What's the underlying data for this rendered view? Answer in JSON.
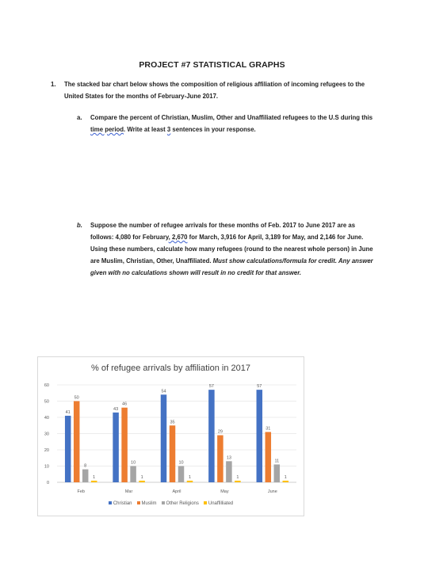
{
  "title": "PROJECT #7 STATISTICAL GRAPHS",
  "question1": {
    "number": "1.",
    "text": "The stacked bar chart below shows the composition of religious affiliation of incoming refugees to the United States for the months of February-June 2017."
  },
  "part_a": {
    "label": "a.",
    "text_1": "Compare the percent of Christian, Muslim, Other and Unaffiliated refugees to the U.S during this ",
    "text_underlined_1": "time period",
    "text_2": ". Write at least ",
    "text_underlined_2": "3",
    "text_3": " sentences in your response."
  },
  "part_b": {
    "label": "b.",
    "text_1": "Suppose the number of refugee arrivals for these months of Feb. 2017 to June 2017 are as follows: 4,080 for February",
    "text_underlined": ", 2,670",
    "text_2": " for March,  3,916 for April,  3,189 for May, and 2,146 for June. Using these numbers, calculate how many refugees (round to the nearest whole person) in June are Muslim, Christian, Other, Unaffiliated. ",
    "text_italic": "Must show calculations/formula for credit. Any answer given with no calculations shown will result in no credit for that answer."
  },
  "colors": {
    "Christian": "#4472c4",
    "Muslim": "#ed7d31",
    "Other Religions": "#a5a5a5",
    "Unaffilliated": "#ffc000"
  },
  "chart_data": {
    "type": "bar",
    "title": "% of refugee arrivals by affiliation in 2017",
    "categories": [
      "Feb",
      "Mar",
      "April",
      "May",
      "June"
    ],
    "series": [
      {
        "name": "Christian",
        "values": [
          41,
          43,
          54,
          57,
          57
        ]
      },
      {
        "name": "Muslim",
        "values": [
          50,
          46,
          35,
          29,
          31
        ]
      },
      {
        "name": "Other Religions",
        "values": [
          8,
          10,
          10,
          13,
          11
        ]
      },
      {
        "name": "Unaffilliated",
        "values": [
          1,
          1,
          1,
          1,
          1
        ]
      }
    ],
    "ylim": [
      0,
      60
    ],
    "yticks": [
      0,
      10,
      20,
      30,
      40,
      50,
      60
    ],
    "grid": true,
    "legend_position": "bottom"
  }
}
